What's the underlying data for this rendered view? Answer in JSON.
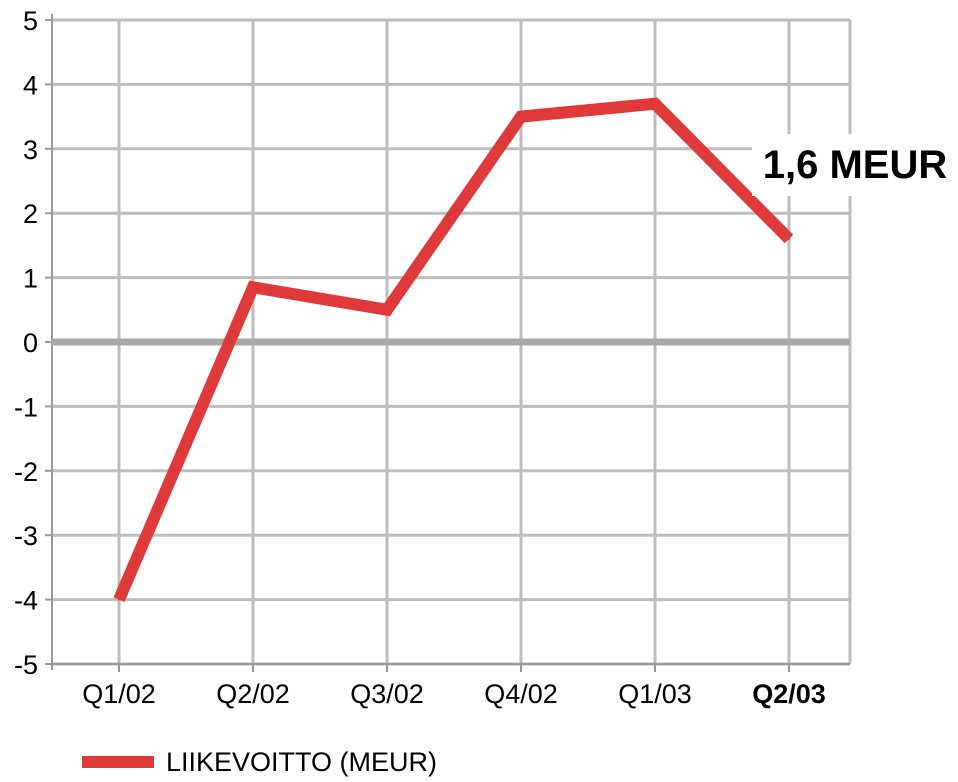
{
  "chart_data": {
    "type": "line",
    "categories": [
      "Q1/02",
      "Q2/02",
      "Q3/02",
      "Q4/02",
      "Q1/03",
      "Q2/03"
    ],
    "highlighted_category": "Q2/03",
    "series": [
      {
        "name": "LIIKEVOITTO (MEUR)",
        "values": [
          -4.0,
          0.85,
          0.5,
          3.5,
          3.7,
          1.6
        ],
        "color": "#e0393a"
      }
    ],
    "ylim": [
      -5,
      5
    ],
    "yticks": [
      "-5",
      "-4",
      "-3",
      "-2",
      "-1",
      "0",
      "1",
      "2",
      "3",
      "4",
      "5"
    ],
    "grid": true,
    "annotation": "1,6 MEUR",
    "legend_position": "bottom-left",
    "colors": {
      "grid": "#bdbdbd",
      "zero_line": "#a8a8a8",
      "axis": "#9a9a9a"
    }
  }
}
